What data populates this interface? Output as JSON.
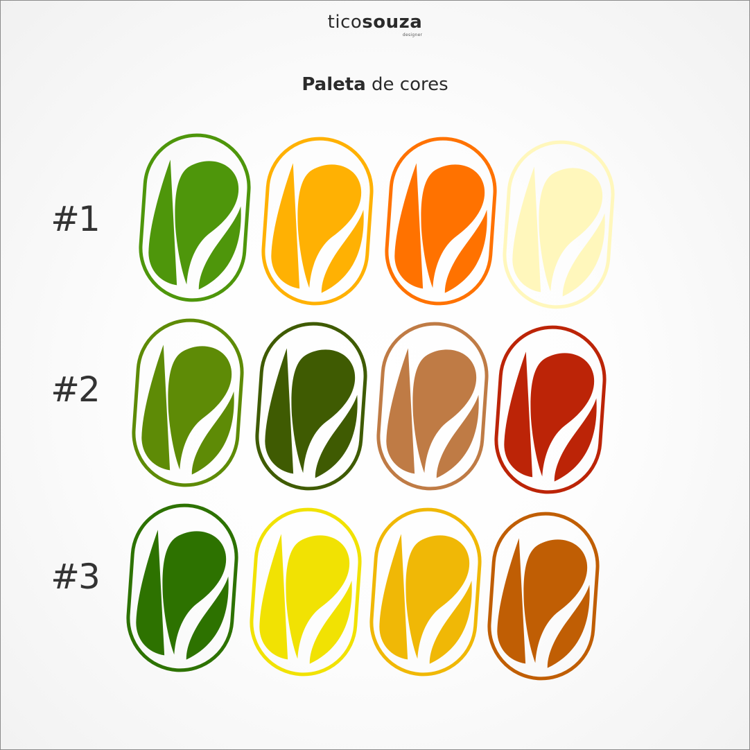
{
  "brand": {
    "name_light": "tico",
    "name_bold": "souza",
    "subtitle": "designer"
  },
  "title": {
    "bold": "Paleta",
    "rest": " de cores"
  },
  "rows": [
    {
      "label": "#1",
      "colors": [
        "#4e960b",
        "#ffb103",
        "#ff7200",
        "#fff7bc"
      ]
    },
    {
      "label": "#2",
      "colors": [
        "#5e8b06",
        "#3f5b02",
        "#bf7b45",
        "#bc2407"
      ]
    },
    {
      "label": "#3",
      "colors": [
        "#2d7200",
        "#f1e203",
        "#f0b806",
        "#c05e04"
      ]
    }
  ]
}
